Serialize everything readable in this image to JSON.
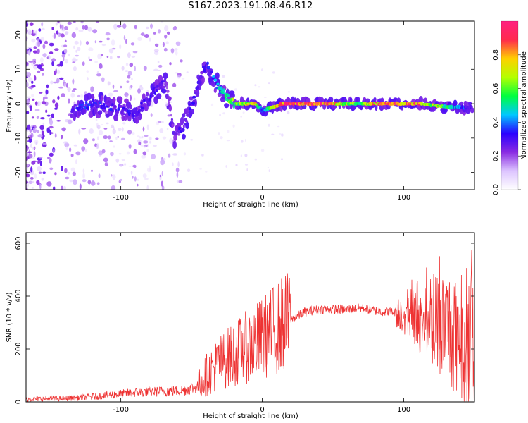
{
  "figure": {
    "title": "S167.2023.191.08.46.R12"
  },
  "chart_data": [
    {
      "type": "heatmap",
      "xlabel": "Height of straight line (km)",
      "ylabel": "Frequency (Hz)",
      "xlim": [
        -167,
        150
      ],
      "ylim": [
        -25,
        24
      ],
      "xticks": [
        -100,
        0,
        100
      ],
      "yticks": [
        -20,
        -10,
        0,
        10,
        20
      ],
      "colorbar": {
        "label": "Normalized spectral amplitude",
        "range": [
          0,
          1
        ],
        "ticks": [
          0.0,
          0.2,
          0.4,
          0.6,
          0.8
        ],
        "colormap": [
          "#ffffff",
          "#dcc4ff",
          "#8a2be2",
          "#2a00ff",
          "#00c8ff",
          "#00ff40",
          "#b4ff00",
          "#ffd000",
          "#ff2a4d",
          "#ff2080"
        ]
      },
      "ridge": [
        {
          "x": -135,
          "f": -2,
          "amp": 0.3
        },
        {
          "x": -120,
          "f": 0,
          "amp": 0.35
        },
        {
          "x": -105,
          "f": -1,
          "amp": 0.3
        },
        {
          "x": -90,
          "f": -3,
          "amp": 0.3
        },
        {
          "x": -75,
          "f": 4,
          "amp": 0.3
        },
        {
          "x": -68,
          "f": 6,
          "amp": 0.25
        },
        {
          "x": -62,
          "f": -10,
          "amp": 0.25
        },
        {
          "x": -55,
          "f": -6,
          "amp": 0.3
        },
        {
          "x": -48,
          "f": 2,
          "amp": 0.3
        },
        {
          "x": -40,
          "f": 12,
          "amp": 0.3
        },
        {
          "x": -30,
          "f": 4,
          "amp": 0.45
        },
        {
          "x": -20,
          "f": 0,
          "amp": 0.65
        },
        {
          "x": -5,
          "f": 0,
          "amp": 0.8
        },
        {
          "x": 0,
          "f": -2,
          "amp": 0.4
        },
        {
          "x": 15,
          "f": 0,
          "amp": 0.95
        },
        {
          "x": 40,
          "f": 0,
          "amp": 0.9
        },
        {
          "x": 70,
          "f": 0,
          "amp": 0.6
        },
        {
          "x": 85,
          "f": 0,
          "amp": 0.9
        },
        {
          "x": 110,
          "f": 0,
          "amp": 0.85
        },
        {
          "x": 135,
          "f": -1,
          "amp": 0.45
        },
        {
          "x": 148,
          "f": -1,
          "amp": 0.3
        }
      ]
    },
    {
      "type": "line",
      "xlabel": "Height of straight line (km)",
      "ylabel": "SNR (10 * v/v)",
      "xlim": [
        -167,
        150
      ],
      "ylim": [
        0,
        640
      ],
      "xticks": [
        -100,
        0,
        100
      ],
      "yticks": [
        0,
        200,
        400,
        600
      ],
      "color": "#ee3333",
      "series": [
        {
          "x": [
            -167,
            -150,
            -130,
            -110,
            -90,
            -70,
            -55,
            -45,
            -40,
            -30,
            -20,
            -10,
            0,
            10,
            20,
            30,
            40,
            50,
            60,
            70,
            80,
            90,
            100,
            110,
            120,
            130,
            140,
            150
          ],
          "y": [
            10,
            12,
            15,
            25,
            35,
            40,
            45,
            60,
            100,
            150,
            180,
            210,
            240,
            280,
            310,
            340,
            350,
            350,
            350,
            355,
            345,
            340,
            340,
            320,
            310,
            290,
            260,
            200
          ]
        }
      ]
    }
  ]
}
